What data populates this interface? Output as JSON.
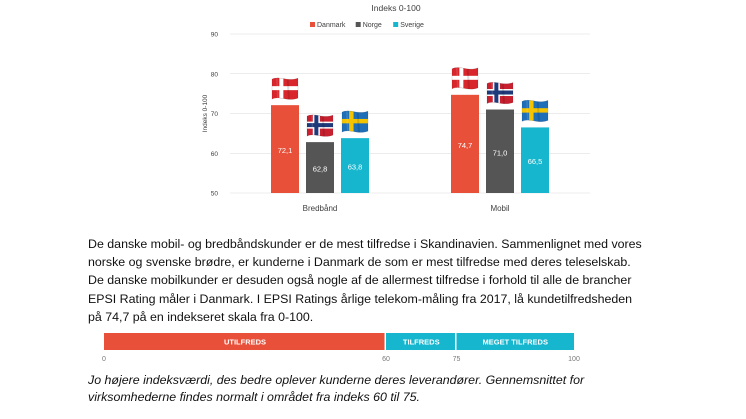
{
  "chart_data": {
    "type": "bar",
    "title": "Indeks 0-100",
    "ylabel": "Indeks 0-100",
    "ylim": [
      50,
      90
    ],
    "yticks": [
      "50",
      "60",
      "70",
      "80",
      "90"
    ],
    "grid": true,
    "legend_position": "top",
    "categories": [
      "Bredbånd",
      "Mobil"
    ],
    "series": [
      {
        "name": "Danmark",
        "color": "#e8503a",
        "values": [
          72.1,
          74.7
        ],
        "labels": [
          "72,1",
          "74,7"
        ],
        "flag": "denmark-flag-icon"
      },
      {
        "name": "Norge",
        "color": "#555555",
        "values": [
          62.8,
          71.0
        ],
        "labels": [
          "62,8",
          "71,0"
        ],
        "flag": "norway-flag-icon"
      },
      {
        "name": "Sverige",
        "color": "#16b6cf",
        "values": [
          63.8,
          66.5
        ],
        "labels": [
          "63,8",
          "66,5"
        ],
        "flag": "sweden-flag-icon"
      }
    ]
  },
  "text": {
    "paragraph": "De danske mobil- og bredbåndskunder er de mest tilfredse i Skandinavien. Sammenlignet med vores norske og svenske brødre, er kunderne i Danmark de som er mest tilfredse med deres teleselskab. De danske mobilkunder er desuden også nogle af de allermest tilfredse i forhold til alle de brancher EPSI Rating måler i Danmark. I EPSI Ratings årlige telekom-måling fra 2017, lå kundetilfredsheden på 74,7 på en indekseret skala fra 0-100.",
    "italic_note": "Jo højere indeksværdi, des bedre oplever kunderne deres leverandører. Gennemsnittet for virksomhederne findes normalt i området fra indeks 60 til 75."
  },
  "scale": {
    "segments": [
      {
        "label": "UTILFREDS",
        "from": 0,
        "to": 60,
        "color": "#e8503a"
      },
      {
        "label": "TILFREDS",
        "from": 60,
        "to": 75,
        "color": "#16b6cf"
      },
      {
        "label": "MEGET TILFREDS",
        "from": 75,
        "to": 100,
        "color": "#16b6cf"
      }
    ],
    "ticks": [
      "0",
      "60",
      "75",
      "100"
    ]
  }
}
